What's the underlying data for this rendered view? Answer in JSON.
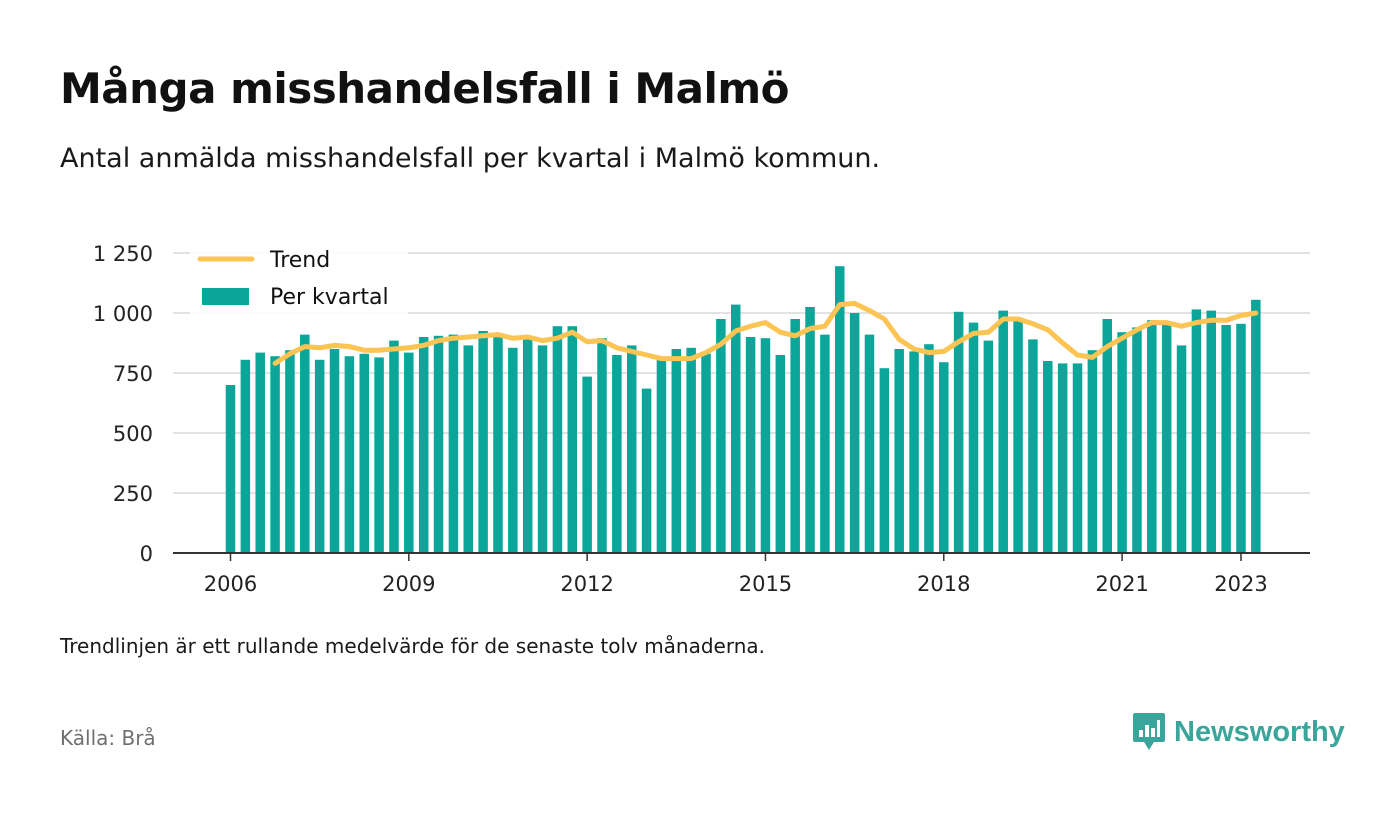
{
  "header": {
    "title": "Många misshandelsfall i Malmö",
    "subtitle": "Antal anmälda misshandelsfall per kvartal i Malmö kommun."
  },
  "footer": {
    "note": "Trendlinjen är ett rullande medelvärde för de senaste tolv månaderna.",
    "source": "Källa: Brå",
    "brand": "Newsworthy",
    "brand_icon": "chart-bubble-icon"
  },
  "colors": {
    "bars": "#0aa69a",
    "trend": "#fbc453",
    "grid": "#d9d9d9",
    "axis": "#333333",
    "brand": "#3aa59a"
  },
  "chart_data": {
    "type": "bar",
    "xlabel": "",
    "ylabel": "",
    "ylim": [
      0,
      1250
    ],
    "yticks": [
      0,
      250,
      500,
      750,
      1000,
      1250
    ],
    "ytick_labels": [
      "0",
      "250",
      "500",
      "750",
      "1 000",
      "1 250"
    ],
    "xticks": [
      "2006",
      "2009",
      "2012",
      "2015",
      "2018",
      "2021",
      "2023"
    ],
    "grid": true,
    "legend": {
      "position": "top-left",
      "entries": [
        "Trend",
        "Per kvartal"
      ]
    },
    "categories": [
      "2006-Q1",
      "2006-Q2",
      "2006-Q3",
      "2006-Q4",
      "2007-Q1",
      "2007-Q2",
      "2007-Q3",
      "2007-Q4",
      "2008-Q1",
      "2008-Q2",
      "2008-Q3",
      "2008-Q4",
      "2009-Q1",
      "2009-Q2",
      "2009-Q3",
      "2009-Q4",
      "2010-Q1",
      "2010-Q2",
      "2010-Q3",
      "2010-Q4",
      "2011-Q1",
      "2011-Q2",
      "2011-Q3",
      "2011-Q4",
      "2012-Q1",
      "2012-Q2",
      "2012-Q3",
      "2012-Q4",
      "2013-Q1",
      "2013-Q2",
      "2013-Q3",
      "2013-Q4",
      "2014-Q1",
      "2014-Q2",
      "2014-Q3",
      "2014-Q4",
      "2015-Q1",
      "2015-Q2",
      "2015-Q3",
      "2015-Q4",
      "2016-Q1",
      "2016-Q2",
      "2016-Q3",
      "2016-Q4",
      "2017-Q1",
      "2017-Q2",
      "2017-Q3",
      "2017-Q4",
      "2018-Q1",
      "2018-Q2",
      "2018-Q3",
      "2018-Q4",
      "2019-Q1",
      "2019-Q2",
      "2019-Q3",
      "2019-Q4",
      "2020-Q1",
      "2020-Q2",
      "2020-Q3",
      "2020-Q4",
      "2021-Q1",
      "2021-Q2",
      "2021-Q3",
      "2021-Q4",
      "2022-Q1",
      "2022-Q2",
      "2022-Q3",
      "2022-Q4",
      "2023-Q1",
      "2023-Q2"
    ],
    "series": [
      {
        "name": "Per kvartal",
        "type": "bar",
        "values": [
          700,
          805,
          835,
          820,
          845,
          910,
          805,
          850,
          820,
          830,
          815,
          885,
          835,
          900,
          905,
          910,
          865,
          925,
          905,
          855,
          900,
          865,
          945,
          945,
          735,
          895,
          825,
          865,
          685,
          810,
          850,
          855,
          830,
          975,
          1035,
          900,
          895,
          825,
          975,
          1025,
          910,
          1195,
          1000,
          910,
          770,
          850,
          840,
          870,
          795,
          1005,
          960,
          885,
          1010,
          980,
          890,
          800,
          790,
          790,
          845,
          975,
          920,
          940,
          970,
          955,
          865,
          1015,
          1010,
          950,
          955,
          1055
        ]
      },
      {
        "name": "Trend",
        "type": "line",
        "values": [
          null,
          null,
          null,
          790,
          830,
          860,
          855,
          865,
          860,
          845,
          845,
          850,
          855,
          865,
          885,
          895,
          900,
          905,
          910,
          895,
          900,
          885,
          895,
          920,
          880,
          885,
          855,
          840,
          825,
          810,
          810,
          810,
          835,
          870,
          925,
          945,
          960,
          920,
          905,
          935,
          945,
          1035,
          1040,
          1010,
          975,
          890,
          850,
          835,
          840,
          880,
          915,
          920,
          975,
          975,
          955,
          930,
          875,
          825,
          815,
          860,
          895,
          930,
          960,
          960,
          945,
          960,
          970,
          970,
          990,
          1000
        ]
      }
    ]
  }
}
